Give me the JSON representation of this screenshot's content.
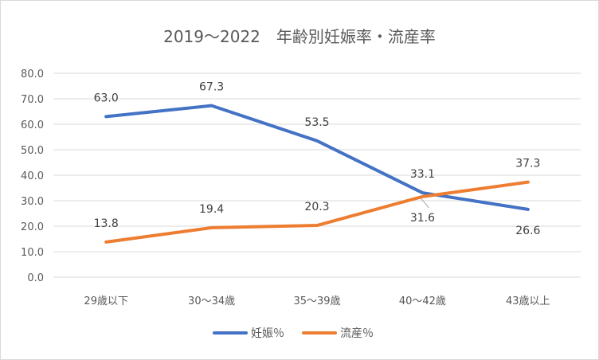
{
  "chart_data": {
    "type": "line",
    "title": "2019～2022　年齢別妊娠率・流産率",
    "categories": [
      "29歳以下",
      "30～34歳",
      "35～39歳",
      "40～42歳",
      "43歳以上"
    ],
    "series": [
      {
        "name": "妊娠％",
        "color": "#4472C4",
        "values": [
          63.0,
          67.3,
          53.5,
          33.1,
          26.6
        ]
      },
      {
        "name": "流産％",
        "color": "#ED7D31",
        "values": [
          13.8,
          19.4,
          20.3,
          31.6,
          37.3
        ]
      }
    ],
    "ylim": [
      0,
      80
    ],
    "yticks": [
      "0.0",
      "10.0",
      "20.0",
      "30.0",
      "40.0",
      "50.0",
      "60.0",
      "70.0",
      "80.0"
    ],
    "grid": true,
    "legend_position": "bottom",
    "data_labels": [
      [
        "63.0",
        "67.3",
        "53.5",
        "33.1",
        "26.6"
      ],
      [
        "13.8",
        "19.4",
        "20.3",
        "31.6",
        "37.3"
      ]
    ]
  }
}
